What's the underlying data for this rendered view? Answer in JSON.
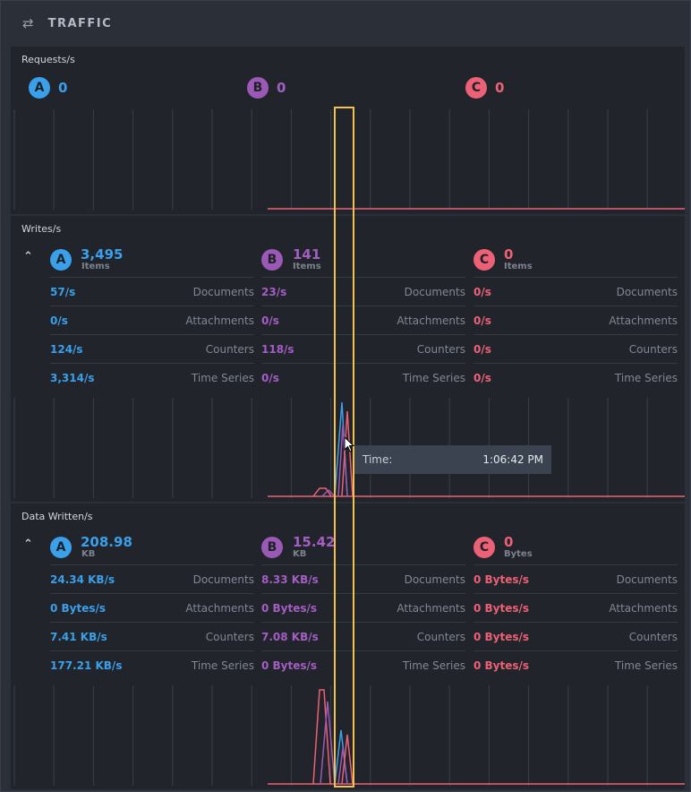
{
  "header": {
    "title": "TRAFFIC",
    "icon": "swap-arrows-icon"
  },
  "requests": {
    "title": "Requests/s",
    "nodes": [
      {
        "tag": "A",
        "value": "0"
      },
      {
        "tag": "B",
        "value": "0"
      },
      {
        "tag": "C",
        "value": "0"
      }
    ]
  },
  "writes": {
    "title": "Writes/s",
    "nodes": [
      {
        "tag": "A",
        "value": "3,495",
        "unit": "Items",
        "rows": [
          {
            "value": "57/s",
            "label": "Documents"
          },
          {
            "value": "0/s",
            "label": "Attachments"
          },
          {
            "value": "124/s",
            "label": "Counters"
          },
          {
            "value": "3,314/s",
            "label": "Time Series"
          }
        ]
      },
      {
        "tag": "B",
        "value": "141",
        "unit": "Items",
        "rows": [
          {
            "value": "23/s",
            "label": "Documents"
          },
          {
            "value": "0/s",
            "label": "Attachments"
          },
          {
            "value": "118/s",
            "label": "Counters"
          },
          {
            "value": "0/s",
            "label": "Time Series"
          }
        ]
      },
      {
        "tag": "C",
        "value": "0",
        "unit": "Items",
        "rows": [
          {
            "value": "0/s",
            "label": "Documents"
          },
          {
            "value": "0/s",
            "label": "Attachments"
          },
          {
            "value": "0/s",
            "label": "Counters"
          },
          {
            "value": "0/s",
            "label": "Time Series"
          }
        ]
      }
    ]
  },
  "data_written": {
    "title": "Data Written/s",
    "nodes": [
      {
        "tag": "A",
        "value": "208.98",
        "unit": "KB",
        "rows": [
          {
            "value": "24.34 KB/s",
            "label": "Documents"
          },
          {
            "value": "0 Bytes/s",
            "label": "Attachments"
          },
          {
            "value": "7.41 KB/s",
            "label": "Counters"
          },
          {
            "value": "177.21 KB/s",
            "label": "Time Series"
          }
        ]
      },
      {
        "tag": "B",
        "value": "15.42",
        "unit": "KB",
        "rows": [
          {
            "value": "8.33 KB/s",
            "label": "Documents"
          },
          {
            "value": "0 Bytes/s",
            "label": "Attachments"
          },
          {
            "value": "7.08 KB/s",
            "label": "Counters"
          },
          {
            "value": "0 Bytes/s",
            "label": "Time Series"
          }
        ]
      },
      {
        "tag": "C",
        "value": "0",
        "unit": "Bytes",
        "rows": [
          {
            "value": "0 Bytes/s",
            "label": "Documents"
          },
          {
            "value": "0 Bytes/s",
            "label": "Attachments"
          },
          {
            "value": "0 Bytes/s",
            "label": "Counters"
          },
          {
            "value": "0 Bytes/s",
            "label": "Time Series"
          }
        ]
      }
    ]
  },
  "tooltip": {
    "label": "Time:",
    "value": "1:06:42 PM"
  },
  "colors": {
    "A": "#3aa0ea",
    "B": "#9b59b6",
    "C": "#ec6176",
    "highlight": "#f2c14e"
  }
}
